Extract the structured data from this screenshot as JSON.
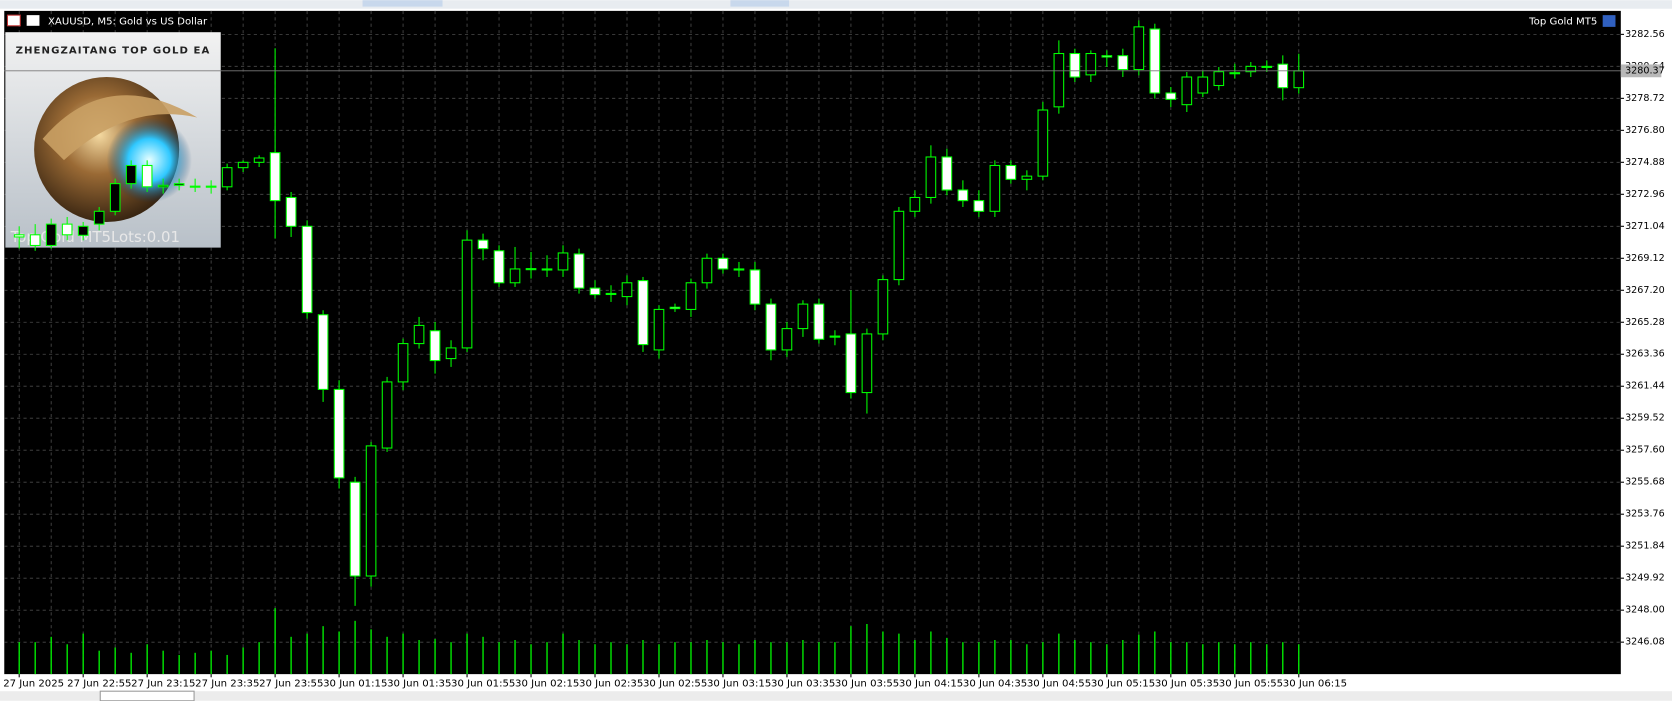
{
  "chart_data": {
    "type": "candlestick",
    "title": "XAUUSD, M5:  Gold vs US Dollar",
    "expert": "Top Gold MT5",
    "ea_panel": {
      "heading": "ZHENGZAITANG TOP GOLD EA",
      "status": "Top Gold MT5Lots:0.01"
    },
    "categories": [
      "27 Jun 2025",
      null,
      null,
      null,
      "27 Jun 22:55",
      null,
      null,
      null,
      "27 Jun 23:15",
      null,
      null,
      null,
      "27 Jun 23:35",
      null,
      null,
      null,
      "27 Jun 23:55",
      null,
      null,
      null,
      "30 Jun 01:15",
      null,
      null,
      null,
      "30 Jun 01:35",
      null,
      null,
      null,
      "30 Jun 01:55",
      null,
      null,
      null,
      "30 Jun 02:15",
      null,
      null,
      null,
      "30 Jun 02:35",
      null,
      null,
      null,
      "30 Jun 02:55",
      null,
      null,
      null,
      "30 Jun 03:15",
      null,
      null,
      null,
      "30 Jun 03:35",
      null,
      null,
      null,
      "30 Jun 03:55",
      null,
      null,
      null,
      "30 Jun 04:15",
      null,
      null,
      null,
      "30 Jun 04:35",
      null,
      null,
      null,
      "30 Jun 04:55",
      null,
      null,
      null,
      "30 Jun 05:15",
      null,
      null,
      null,
      "30 Jun 05:35",
      null,
      null,
      null,
      "30 Jun 05:55",
      null,
      null,
      null,
      "30 Jun 06:15"
    ],
    "open": [
      3270.53,
      3270.53,
      3269.89,
      3271.17,
      3270.5,
      3271.17,
      3271.94,
      3273.6,
      3274.69,
      3273.41,
      3273.5,
      3273.45,
      3273.41,
      3273.41,
      3274.56,
      3274.88,
      3275.46,
      3272.77,
      3271.04,
      3265.73,
      3261.25,
      3255.68,
      3250.05,
      3257.73,
      3261.7,
      3264.0,
      3264.77,
      3263.1,
      3263.74,
      3270.21,
      3269.57,
      3267.65,
      3268.48,
      3268.48,
      3268.42,
      3269.38,
      3267.33,
      3267.01,
      3266.82,
      3267.78,
      3263.62,
      3266.18,
      3266.05,
      3267.65,
      3269.12,
      3268.48,
      3268.42,
      3266.37,
      3263.62,
      3264.9,
      3266.37,
      3264.45,
      3264.58,
      3261.06,
      3264.58,
      3267.84,
      3271.94,
      3272.77,
      3275.2,
      3273.22,
      3272.58,
      3271.94,
      3274.69,
      3273.86,
      3274.05,
      3278.21,
      3281.41,
      3280.13,
      3281.28,
      3281.28,
      3280.45,
      3282.88,
      3279.04,
      3278.34,
      3279.04,
      3279.49,
      3280.26,
      3280.32,
      3280.64,
      3280.77,
      3279.36
    ],
    "high": [
      3271.04,
      3271.17,
      3271.5,
      3271.6,
      3271.3,
      3272.2,
      3273.9,
      3275.0,
      3275.0,
      3273.9,
      3273.9,
      3273.9,
      3273.8,
      3274.8,
      3275.0,
      3275.3,
      3281.73,
      3273.1,
      3271.4,
      3266.0,
      3261.8,
      3256.0,
      3258.1,
      3262.0,
      3264.3,
      3265.6,
      3265.3,
      3264.2,
      3270.8,
      3270.6,
      3269.9,
      3269.8,
      3269.5,
      3269.3,
      3269.9,
      3269.7,
      3267.8,
      3267.5,
      3268.1,
      3268.0,
      3266.3,
      3266.4,
      3267.9,
      3269.4,
      3269.4,
      3268.9,
      3268.9,
      3266.7,
      3265.3,
      3266.6,
      3266.7,
      3264.8,
      3267.2,
      3264.9,
      3268.1,
      3272.2,
      3273.2,
      3275.9,
      3275.7,
      3273.8,
      3273.2,
      3275.0,
      3275.0,
      3274.4,
      3278.5,
      3282.2,
      3281.7,
      3281.6,
      3281.6,
      3281.7,
      3283.4,
      3283.2,
      3279.4,
      3280.3,
      3280.4,
      3280.6,
      3280.8,
      3280.9,
      3281.0,
      3281.3,
      3281.4
    ],
    "low": [
      3269.7,
      3269.57,
      3269.7,
      3270.2,
      3270.2,
      3270.8,
      3271.7,
      3273.3,
      3273.1,
      3273.0,
      3273.2,
      3273.1,
      3273.0,
      3273.2,
      3274.3,
      3274.6,
      3270.3,
      3270.4,
      3265.5,
      3260.5,
      3255.3,
      3248.26,
      3249.41,
      3257.5,
      3261.2,
      3263.7,
      3262.2,
      3262.6,
      3263.5,
      3269.0,
      3267.4,
      3267.4,
      3267.9,
      3268.0,
      3268.0,
      3267.0,
      3266.7,
      3266.5,
      3266.3,
      3263.5,
      3263.1,
      3265.9,
      3265.6,
      3267.3,
      3268.2,
      3268.0,
      3266.0,
      3263.0,
      3263.2,
      3264.4,
      3264.0,
      3263.9,
      3260.7,
      3259.8,
      3264.2,
      3267.5,
      3271.6,
      3272.4,
      3272.9,
      3272.2,
      3271.6,
      3271.6,
      3273.6,
      3273.2,
      3273.8,
      3277.8,
      3279.7,
      3279.7,
      3280.6,
      3280.0,
      3280.1,
      3278.7,
      3278.2,
      3277.9,
      3278.8,
      3279.2,
      3279.9,
      3280.0,
      3280.3,
      3278.6,
      3279.0
    ],
    "close": [
      3270.4,
      3269.89,
      3271.17,
      3270.53,
      3271.04,
      3271.94,
      3273.6,
      3274.69,
      3273.41,
      3273.5,
      3273.6,
      3273.41,
      3273.45,
      3274.56,
      3274.88,
      3275.14,
      3272.58,
      3271.04,
      3265.86,
      3261.25,
      3255.94,
      3250.05,
      3257.86,
      3261.7,
      3264.0,
      3265.09,
      3262.98,
      3263.74,
      3270.21,
      3269.7,
      3267.65,
      3268.48,
      3268.5,
      3268.42,
      3269.44,
      3267.33,
      3266.94,
      3266.96,
      3267.65,
      3263.94,
      3266.05,
      3266.1,
      3267.65,
      3269.12,
      3268.48,
      3268.42,
      3266.37,
      3263.62,
      3264.9,
      3266.37,
      3264.26,
      3264.4,
      3261.06,
      3264.58,
      3267.84,
      3271.94,
      3272.77,
      3275.2,
      3273.22,
      3272.58,
      3271.94,
      3274.69,
      3273.86,
      3274.05,
      3278.02,
      3281.41,
      3280.0,
      3281.41,
      3281.2,
      3280.45,
      3283.01,
      3279.04,
      3278.66,
      3280.0,
      3280.0,
      3280.32,
      3280.2,
      3280.64,
      3280.6,
      3279.36,
      3280.37
    ],
    "volume": [
      30,
      30,
      35,
      28,
      38,
      22,
      25,
      20,
      28,
      22,
      18,
      20,
      22,
      18,
      25,
      30,
      62,
      35,
      38,
      45,
      40,
      50,
      42,
      35,
      38,
      32,
      33,
      30,
      38,
      35,
      30,
      32,
      28,
      30,
      38,
      32,
      28,
      30,
      28,
      32,
      28,
      30,
      30,
      32,
      30,
      28,
      32,
      30,
      30,
      32,
      30,
      30,
      45,
      47,
      40,
      38,
      32,
      40,
      34,
      30,
      30,
      32,
      32,
      28,
      30,
      38,
      32,
      30,
      28,
      32,
      37,
      40,
      30,
      30,
      28,
      30,
      28,
      30,
      28,
      30,
      28
    ],
    "bid": 3280.37,
    "up_color": "#00ff00",
    "up_body": "#000000",
    "down_body": "#ffffff",
    "grid": true,
    "grid_color": "#4a4a4a",
    "ylim": [
      3244.16,
      3283.97
    ],
    "yticks": [
      3282.56,
      3280.64,
      3278.72,
      {
        "value": 3276.8,
        "label": "3276.80"
      },
      3274.88,
      3272.96,
      3271.04,
      3269.12,
      {
        "value": 3267.2,
        "label": "3267.20"
      },
      3265.28,
      3263.36,
      3261.44,
      3259.52,
      {
        "value": 3257.6,
        "label": "3257.60"
      },
      3255.68,
      3253.76,
      3251.84,
      3249.92,
      {
        "value": 3248,
        "label": "3248.00"
      },
      3246.08
    ]
  }
}
